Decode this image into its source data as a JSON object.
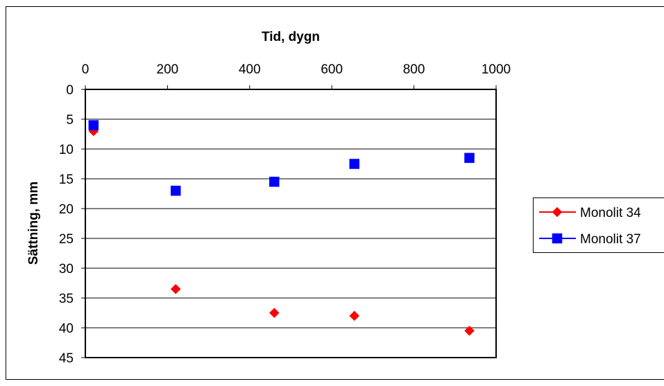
{
  "chart_data": {
    "type": "scatter",
    "title": "",
    "xlabel": "Tid, dygn",
    "ylabel": "Sättning, mm",
    "x_axis_position": "top",
    "y_axis_inverted": true,
    "xlim": [
      0,
      1000
    ],
    "ylim": [
      0,
      45
    ],
    "x_ticks": [
      "0",
      "200",
      "400",
      "600",
      "800",
      "1000"
    ],
    "y_ticks": [
      "0",
      "5",
      "10",
      "15",
      "20",
      "25",
      "30",
      "35",
      "40",
      "45"
    ],
    "grid": "horizontal",
    "legend_position": "right",
    "series": [
      {
        "name": "Monolit 34",
        "marker": "diamond",
        "color": "#ff0000",
        "x": [
          20,
          220,
          460,
          655,
          935
        ],
        "y": [
          7,
          33.5,
          37.5,
          38,
          40.5
        ]
      },
      {
        "name": "Monolit 37",
        "marker": "square",
        "color": "#0000ff",
        "x": [
          20,
          220,
          460,
          655,
          935
        ],
        "y": [
          6,
          17,
          15.5,
          12.5,
          11.5
        ]
      }
    ]
  }
}
